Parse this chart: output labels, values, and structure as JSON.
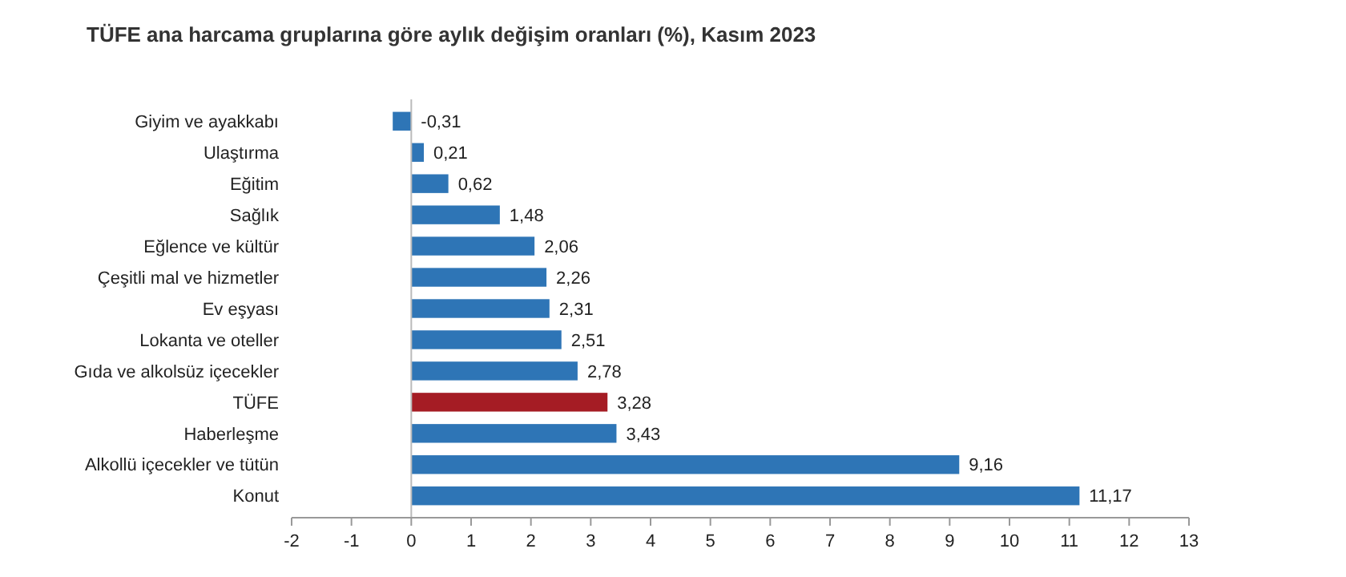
{
  "chart_data": {
    "type": "bar",
    "orientation": "horizontal",
    "title": "TÜFE ana harcama gruplarına göre aylık değişim oranları (%), Kasım 2023",
    "categories": [
      "Giyim ve ayakkabı",
      "Ulaştırma",
      "Eğitim",
      "Sağlık",
      "Eğlence ve kültür",
      "Çeşitli mal ve hizmetler",
      "Ev eşyası",
      "Lokanta ve oteller",
      "Gıda ve alkolsüz içecekler",
      "TÜFE",
      "Haberleşme",
      "Alkollü içecekler ve tütün",
      "Konut"
    ],
    "values": [
      -0.31,
      0.21,
      0.62,
      1.48,
      2.06,
      2.26,
      2.31,
      2.51,
      2.78,
      3.28,
      3.43,
      9.16,
      11.17
    ],
    "value_labels": [
      "-0,31",
      "0,21",
      "0,62",
      "1,48",
      "2,06",
      "2,26",
      "2,31",
      "2,51",
      "2,78",
      "3,28",
      "3,43",
      "9,16",
      "11,17"
    ],
    "colors": [
      "#2e75b6",
      "#2e75b6",
      "#2e75b6",
      "#2e75b6",
      "#2e75b6",
      "#2e75b6",
      "#2e75b6",
      "#2e75b6",
      "#2e75b6",
      "#a51c24",
      "#2e75b6",
      "#2e75b6",
      "#2e75b6"
    ],
    "xlim": [
      -2,
      13
    ],
    "xticks": [
      -2,
      -1,
      0,
      1,
      2,
      3,
      4,
      5,
      6,
      7,
      8,
      9,
      10,
      11,
      12,
      13
    ]
  }
}
